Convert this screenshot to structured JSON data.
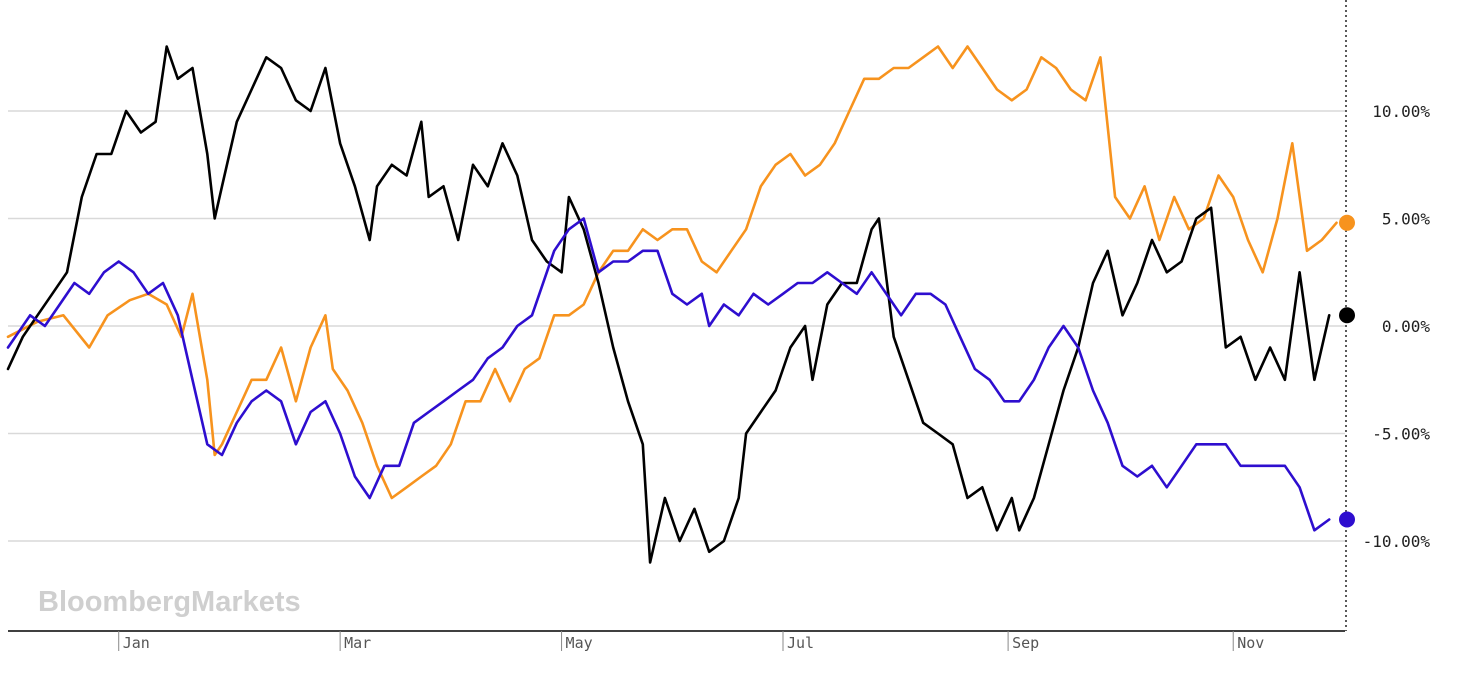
{
  "watermark": "BloombergMarkets",
  "chart_data": {
    "type": "line",
    "x_axis": {
      "months": [
        "Jan",
        "Mar",
        "May",
        "Jul",
        "Sep",
        "Nov"
      ],
      "tick_days": [
        30,
        90,
        150,
        210,
        271,
        332
      ],
      "range_days": [
        0,
        365
      ]
    },
    "y_axis": {
      "ticks": [
        10,
        5,
        0,
        -5,
        -10
      ],
      "tick_labels": [
        "10.00%",
        "5.00%",
        "0.00%",
        "-5.00%",
        "-10.00%"
      ],
      "range": [
        -13.3,
        14.9
      ],
      "grid": true,
      "position": "right"
    },
    "series": [
      {
        "color": "#f7931e",
        "end_value": 4.8,
        "points": [
          [
            0,
            -0.5
          ],
          [
            8,
            0.2
          ],
          [
            15,
            0.5
          ],
          [
            22,
            -1.0
          ],
          [
            27,
            0.5
          ],
          [
            33,
            1.2
          ],
          [
            38,
            1.5
          ],
          [
            43,
            1.0
          ],
          [
            47,
            -0.5
          ],
          [
            50,
            1.5
          ],
          [
            54,
            -2.5
          ],
          [
            56,
            -6.0
          ],
          [
            58,
            -5.5
          ],
          [
            62,
            -4.0
          ],
          [
            66,
            -2.5
          ],
          [
            70,
            -2.5
          ],
          [
            74,
            -1.0
          ],
          [
            78,
            -3.5
          ],
          [
            82,
            -1.0
          ],
          [
            86,
            0.5
          ],
          [
            88,
            -2.0
          ],
          [
            92,
            -3.0
          ],
          [
            96,
            -4.5
          ],
          [
            100,
            -6.5
          ],
          [
            104,
            -8.0
          ],
          [
            108,
            -7.5
          ],
          [
            112,
            -7.0
          ],
          [
            116,
            -6.5
          ],
          [
            120,
            -5.5
          ],
          [
            124,
            -3.5
          ],
          [
            128,
            -3.5
          ],
          [
            132,
            -2.0
          ],
          [
            136,
            -3.5
          ],
          [
            140,
            -2.0
          ],
          [
            144,
            -1.5
          ],
          [
            148,
            0.5
          ],
          [
            152,
            0.5
          ],
          [
            156,
            1.0
          ],
          [
            160,
            2.5
          ],
          [
            164,
            3.5
          ],
          [
            168,
            3.5
          ],
          [
            172,
            4.5
          ],
          [
            176,
            4.0
          ],
          [
            180,
            4.5
          ],
          [
            184,
            4.5
          ],
          [
            188,
            3.0
          ],
          [
            192,
            2.5
          ],
          [
            196,
            3.5
          ],
          [
            200,
            4.5
          ],
          [
            204,
            6.5
          ],
          [
            208,
            7.5
          ],
          [
            212,
            8.0
          ],
          [
            216,
            7.0
          ],
          [
            220,
            7.5
          ],
          [
            224,
            8.5
          ],
          [
            228,
            10.0
          ],
          [
            232,
            11.5
          ],
          [
            236,
            11.5
          ],
          [
            240,
            12.0
          ],
          [
            244,
            12.0
          ],
          [
            248,
            12.5
          ],
          [
            252,
            13.0
          ],
          [
            256,
            12.0
          ],
          [
            260,
            13.0
          ],
          [
            264,
            12.0
          ],
          [
            268,
            11.0
          ],
          [
            272,
            10.5
          ],
          [
            276,
            11.0
          ],
          [
            280,
            12.5
          ],
          [
            284,
            12.0
          ],
          [
            288,
            11.0
          ],
          [
            292,
            10.5
          ],
          [
            296,
            12.5
          ],
          [
            300,
            6.0
          ],
          [
            304,
            5.0
          ],
          [
            308,
            6.5
          ],
          [
            312,
            4.0
          ],
          [
            316,
            6.0
          ],
          [
            320,
            4.5
          ],
          [
            324,
            5.0
          ],
          [
            328,
            7.0
          ],
          [
            332,
            6.0
          ],
          [
            336,
            4.0
          ],
          [
            340,
            2.5
          ],
          [
            344,
            5.0
          ],
          [
            348,
            8.5
          ],
          [
            352,
            3.5
          ],
          [
            356,
            4.0
          ],
          [
            360,
            4.8
          ]
        ]
      },
      {
        "color": "#000000",
        "end_value": 0.5,
        "points": [
          [
            0,
            -2.0
          ],
          [
            4,
            -0.5
          ],
          [
            8,
            0.5
          ],
          [
            12,
            1.5
          ],
          [
            16,
            2.5
          ],
          [
            20,
            6.0
          ],
          [
            24,
            8.0
          ],
          [
            28,
            8.0
          ],
          [
            32,
            10.0
          ],
          [
            36,
            9.0
          ],
          [
            40,
            9.5
          ],
          [
            43,
            13.0
          ],
          [
            46,
            11.5
          ],
          [
            50,
            12.0
          ],
          [
            54,
            8.0
          ],
          [
            56,
            5.0
          ],
          [
            58,
            6.5
          ],
          [
            62,
            9.5
          ],
          [
            66,
            11.0
          ],
          [
            70,
            12.5
          ],
          [
            74,
            12.0
          ],
          [
            78,
            10.5
          ],
          [
            82,
            10.0
          ],
          [
            86,
            12.0
          ],
          [
            90,
            8.5
          ],
          [
            94,
            6.5
          ],
          [
            98,
            4.0
          ],
          [
            100,
            6.5
          ],
          [
            104,
            7.5
          ],
          [
            108,
            7.0
          ],
          [
            112,
            9.5
          ],
          [
            114,
            6.0
          ],
          [
            118,
            6.5
          ],
          [
            122,
            4.0
          ],
          [
            126,
            7.5
          ],
          [
            130,
            6.5
          ],
          [
            134,
            8.5
          ],
          [
            138,
            7.0
          ],
          [
            142,
            4.0
          ],
          [
            146,
            3.0
          ],
          [
            150,
            2.5
          ],
          [
            152,
            6.0
          ],
          [
            156,
            4.5
          ],
          [
            160,
            2.0
          ],
          [
            164,
            -1.0
          ],
          [
            168,
            -3.5
          ],
          [
            172,
            -5.5
          ],
          [
            174,
            -11.0
          ],
          [
            178,
            -8.0
          ],
          [
            182,
            -10.0
          ],
          [
            186,
            -8.5
          ],
          [
            190,
            -10.5
          ],
          [
            194,
            -10.0
          ],
          [
            198,
            -8.0
          ],
          [
            200,
            -5.0
          ],
          [
            204,
            -4.0
          ],
          [
            208,
            -3.0
          ],
          [
            212,
            -1.0
          ],
          [
            216,
            0.0
          ],
          [
            218,
            -2.5
          ],
          [
            222,
            1.0
          ],
          [
            226,
            2.0
          ],
          [
            230,
            2.0
          ],
          [
            234,
            4.5
          ],
          [
            236,
            5.0
          ],
          [
            240,
            -0.5
          ],
          [
            244,
            -2.5
          ],
          [
            248,
            -4.5
          ],
          [
            252,
            -5.0
          ],
          [
            256,
            -5.5
          ],
          [
            260,
            -8.0
          ],
          [
            264,
            -7.5
          ],
          [
            268,
            -9.5
          ],
          [
            272,
            -8.0
          ],
          [
            274,
            -9.5
          ],
          [
            278,
            -8.0
          ],
          [
            282,
            -5.5
          ],
          [
            286,
            -3.0
          ],
          [
            290,
            -1.0
          ],
          [
            294,
            2.0
          ],
          [
            298,
            3.5
          ],
          [
            302,
            0.5
          ],
          [
            306,
            2.0
          ],
          [
            310,
            4.0
          ],
          [
            314,
            2.5
          ],
          [
            318,
            3.0
          ],
          [
            322,
            5.0
          ],
          [
            326,
            5.5
          ],
          [
            330,
            -1.0
          ],
          [
            334,
            -0.5
          ],
          [
            338,
            -2.5
          ],
          [
            342,
            -1.0
          ],
          [
            346,
            -2.5
          ],
          [
            350,
            2.5
          ],
          [
            354,
            -2.5
          ],
          [
            358,
            0.5
          ]
        ]
      },
      {
        "color": "#2e0ecf",
        "end_value": -9.0,
        "points": [
          [
            0,
            -1.0
          ],
          [
            6,
            0.5
          ],
          [
            10,
            0.0
          ],
          [
            14,
            1.0
          ],
          [
            18,
            2.0
          ],
          [
            22,
            1.5
          ],
          [
            26,
            2.5
          ],
          [
            30,
            3.0
          ],
          [
            34,
            2.5
          ],
          [
            38,
            1.5
          ],
          [
            42,
            2.0
          ],
          [
            46,
            0.5
          ],
          [
            50,
            -2.5
          ],
          [
            54,
            -5.5
          ],
          [
            58,
            -6.0
          ],
          [
            62,
            -4.5
          ],
          [
            66,
            -3.5
          ],
          [
            70,
            -3.0
          ],
          [
            74,
            -3.5
          ],
          [
            78,
            -5.5
          ],
          [
            82,
            -4.0
          ],
          [
            86,
            -3.5
          ],
          [
            90,
            -5.0
          ],
          [
            94,
            -7.0
          ],
          [
            98,
            -8.0
          ],
          [
            102,
            -6.5
          ],
          [
            106,
            -6.5
          ],
          [
            110,
            -4.5
          ],
          [
            114,
            -4.0
          ],
          [
            118,
            -3.5
          ],
          [
            122,
            -3.0
          ],
          [
            126,
            -2.5
          ],
          [
            130,
            -1.5
          ],
          [
            134,
            -1.0
          ],
          [
            138,
            0.0
          ],
          [
            142,
            0.5
          ],
          [
            146,
            2.5
          ],
          [
            148,
            3.5
          ],
          [
            152,
            4.5
          ],
          [
            156,
            5.0
          ],
          [
            160,
            2.5
          ],
          [
            164,
            3.0
          ],
          [
            168,
            3.0
          ],
          [
            172,
            3.5
          ],
          [
            176,
            3.5
          ],
          [
            180,
            1.5
          ],
          [
            184,
            1.0
          ],
          [
            188,
            1.5
          ],
          [
            190,
            0.0
          ],
          [
            194,
            1.0
          ],
          [
            198,
            0.5
          ],
          [
            202,
            1.5
          ],
          [
            206,
            1.0
          ],
          [
            210,
            1.5
          ],
          [
            214,
            2.0
          ],
          [
            218,
            2.0
          ],
          [
            222,
            2.5
          ],
          [
            226,
            2.0
          ],
          [
            230,
            1.5
          ],
          [
            234,
            2.5
          ],
          [
            238,
            1.5
          ],
          [
            242,
            0.5
          ],
          [
            246,
            1.5
          ],
          [
            250,
            1.5
          ],
          [
            254,
            1.0
          ],
          [
            258,
            -0.5
          ],
          [
            262,
            -2.0
          ],
          [
            266,
            -2.5
          ],
          [
            270,
            -3.5
          ],
          [
            274,
            -3.5
          ],
          [
            278,
            -2.5
          ],
          [
            282,
            -1.0
          ],
          [
            286,
            0.0
          ],
          [
            290,
            -1.0
          ],
          [
            294,
            -3.0
          ],
          [
            298,
            -4.5
          ],
          [
            302,
            -6.5
          ],
          [
            306,
            -7.0
          ],
          [
            310,
            -6.5
          ],
          [
            314,
            -7.5
          ],
          [
            318,
            -6.5
          ],
          [
            322,
            -5.5
          ],
          [
            326,
            -5.5
          ],
          [
            330,
            -5.5
          ],
          [
            334,
            -6.5
          ],
          [
            338,
            -6.5
          ],
          [
            342,
            -6.5
          ],
          [
            346,
            -6.5
          ],
          [
            350,
            -7.5
          ],
          [
            354,
            -9.5
          ],
          [
            358,
            -9.0
          ]
        ]
      }
    ]
  }
}
